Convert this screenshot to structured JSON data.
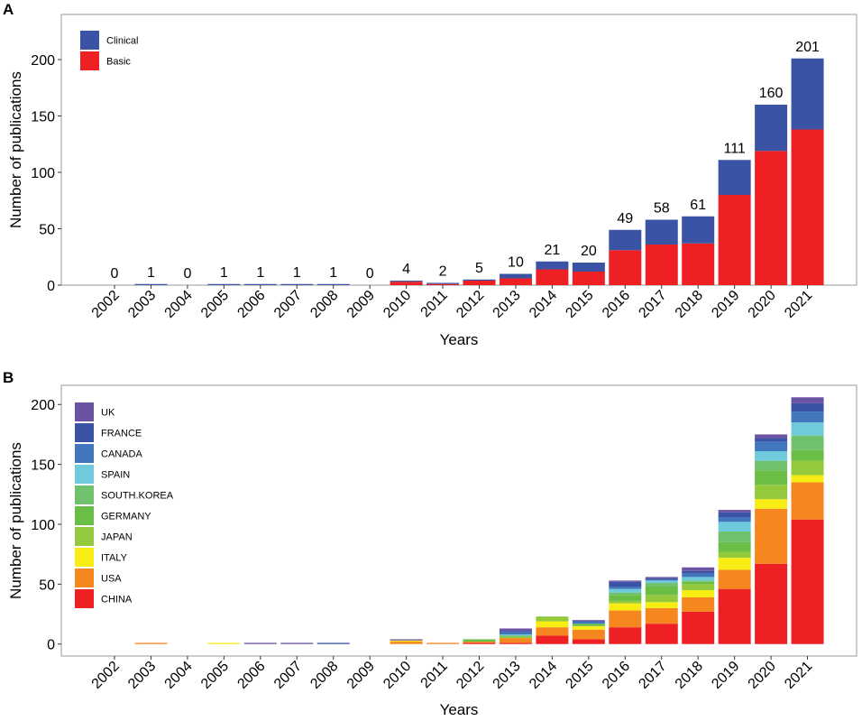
{
  "chart_data": [
    {
      "panel": "A",
      "type": "bar",
      "stacked": true,
      "xlabel": "Years",
      "ylabel": "Number of publications",
      "ylim": [
        0,
        240
      ],
      "yticks": [
        0,
        50,
        100,
        150,
        200
      ],
      "legend_position": "top-left",
      "categories": [
        "2002",
        "2003",
        "2004",
        "2005",
        "2006",
        "2007",
        "2008",
        "2009",
        "2010",
        "2011",
        "2012",
        "2013",
        "2014",
        "2015",
        "2016",
        "2017",
        "2018",
        "2019",
        "2020",
        "2021"
      ],
      "totals": [
        0,
        1,
        0,
        1,
        1,
        1,
        1,
        0,
        4,
        2,
        5,
        10,
        21,
        20,
        49,
        58,
        61,
        111,
        160,
        201
      ],
      "series": [
        {
          "name": "Basic",
          "color": "#ee2024",
          "values": [
            0,
            0,
            0,
            0,
            0,
            0,
            0,
            0,
            3,
            1,
            4,
            6,
            14,
            12,
            31,
            36,
            37,
            80,
            119,
            138
          ]
        },
        {
          "name": "Clinical",
          "color": "#3a53a4",
          "values": [
            0,
            1,
            0,
            1,
            1,
            1,
            1,
            0,
            1,
            1,
            1,
            4,
            7,
            8,
            18,
            22,
            24,
            31,
            41,
            63
          ]
        }
      ],
      "legend_order": [
        "Clinical",
        "Basic"
      ]
    },
    {
      "panel": "B",
      "type": "bar",
      "stacked": true,
      "xlabel": "Years",
      "ylabel": "Number of publications",
      "ylim": [
        -10,
        216
      ],
      "yticks": [
        0,
        50,
        100,
        150,
        200
      ],
      "legend_position": "top-left",
      "categories": [
        "2002",
        "2003",
        "2004",
        "2005",
        "2006",
        "2007",
        "2008",
        "2009",
        "2010",
        "2011",
        "2012",
        "2013",
        "2014",
        "2015",
        "2016",
        "2017",
        "2018",
        "2019",
        "2020",
        "2021"
      ],
      "series": [
        {
          "name": "CHINA",
          "color": "#ee2024",
          "values": [
            0,
            0,
            0,
            0,
            0,
            0,
            0,
            0,
            0,
            0,
            1,
            1,
            7,
            4,
            14,
            17,
            27,
            46,
            67,
            104
          ]
        },
        {
          "name": "USA",
          "color": "#f6871f",
          "values": [
            0,
            1,
            0,
            0,
            0,
            0,
            0,
            0,
            2,
            1,
            1,
            4,
            7,
            8,
            14,
            13,
            12,
            16,
            46,
            31
          ]
        },
        {
          "name": "ITALY",
          "color": "#f7ec13",
          "values": [
            0,
            0,
            0,
            1,
            0,
            0,
            0,
            0,
            1,
            0,
            0,
            0,
            5,
            3,
            6,
            5,
            6,
            10,
            8,
            6
          ]
        },
        {
          "name": "JAPAN",
          "color": "#94c83d",
          "values": [
            0,
            0,
            0,
            0,
            0,
            0,
            0,
            0,
            0,
            0,
            0,
            1,
            4,
            0,
            2,
            6,
            5,
            5,
            12,
            12
          ]
        },
        {
          "name": "GERMANY",
          "color": "#6abd45",
          "values": [
            0,
            0,
            0,
            0,
            0,
            0,
            0,
            0,
            0,
            0,
            2,
            1,
            0,
            2,
            5,
            7,
            2,
            8,
            12,
            9
          ]
        },
        {
          "name": "SOUTH.KOREA",
          "color": "#70c16e",
          "values": [
            0,
            0,
            0,
            0,
            0,
            0,
            0,
            0,
            0,
            0,
            0,
            0,
            0,
            0,
            2,
            3,
            1,
            9,
            8,
            12
          ]
        },
        {
          "name": "SPAIN",
          "color": "#6fcbdc",
          "values": [
            0,
            0,
            0,
            0,
            0,
            0,
            0,
            0,
            0,
            0,
            0,
            1,
            0,
            0,
            3,
            2,
            3,
            8,
            8,
            11
          ]
        },
        {
          "name": "CANADA",
          "color": "#4276bc",
          "values": [
            0,
            0,
            0,
            0,
            0,
            0,
            0,
            0,
            0,
            0,
            0,
            2,
            0,
            2,
            2,
            1,
            3,
            4,
            8,
            9
          ]
        },
        {
          "name": "FRANCE",
          "color": "#3a53a4",
          "values": [
            0,
            0,
            0,
            0,
            0,
            0,
            1,
            0,
            0,
            0,
            0,
            1,
            0,
            0,
            4,
            1,
            2,
            4,
            3,
            7
          ]
        },
        {
          "name": "UK",
          "color": "#6b52a3",
          "values": [
            0,
            0,
            0,
            0,
            1,
            1,
            0,
            0,
            1,
            0,
            0,
            2,
            0,
            1,
            1,
            1,
            3,
            2,
            3,
            5
          ]
        }
      ],
      "legend_order": [
        "UK",
        "FRANCE",
        "CANADA",
        "SPAIN",
        "SOUTH.KOREA",
        "GERMANY",
        "JAPAN",
        "ITALY",
        "USA",
        "CHINA"
      ]
    }
  ]
}
